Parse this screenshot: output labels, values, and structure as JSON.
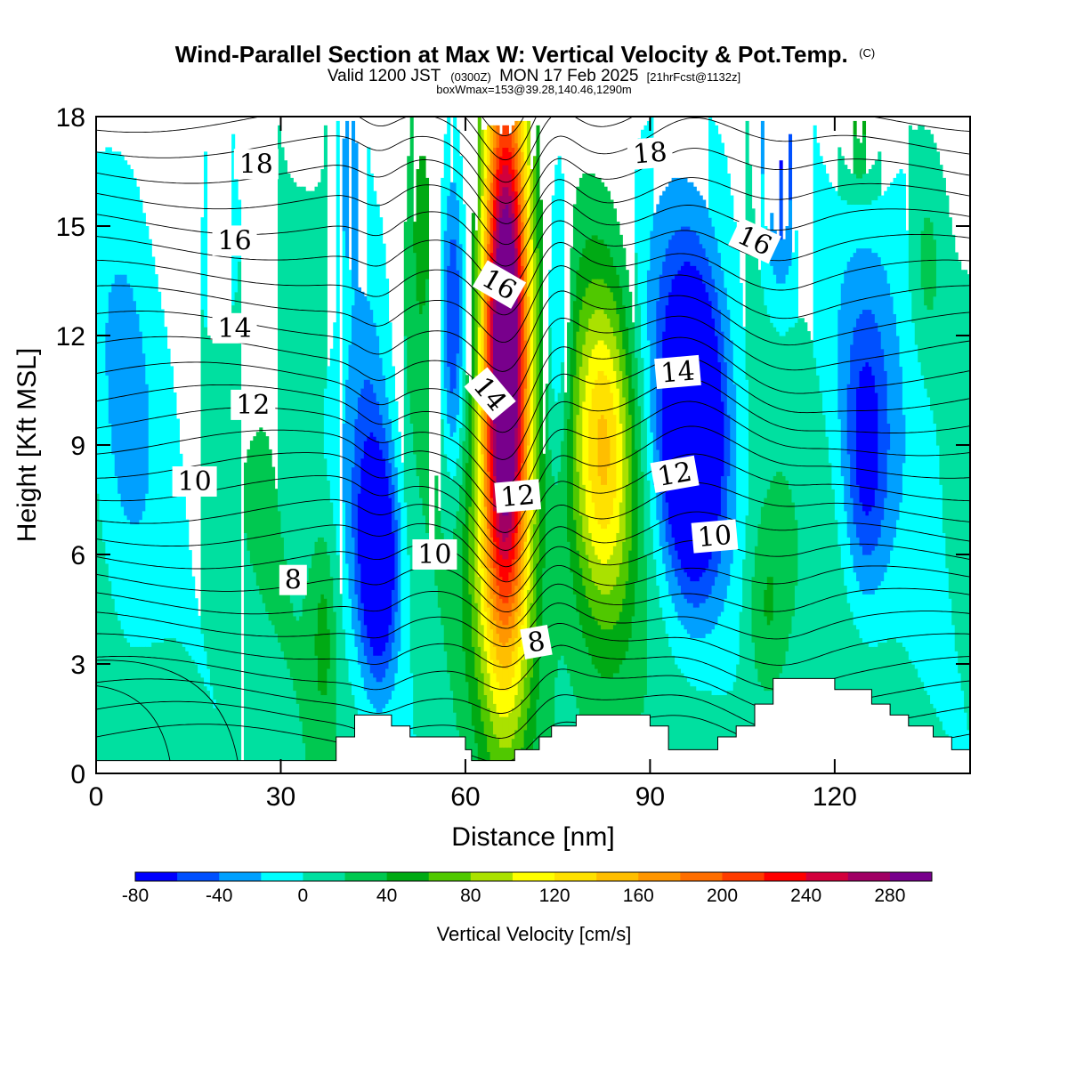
{
  "title": {
    "main": "Wind-Parallel Section at Max W: Vertical Velocity & Pot.Temp.",
    "copyright": "(C)",
    "valid_prefix": "Valid 1200 JST",
    "valid_utc": "(0300Z)",
    "valid_date": "MON 17 Feb 2025",
    "forecast": "[21hrFcst@1132z]",
    "box_info": "boxWmax=153@39.28,140.46,1290m"
  },
  "chart_data": {
    "type": "heatmap",
    "xlabel": "Distance [nm]",
    "ylabel": "Height [Kft MSL]",
    "xlim": [
      0,
      142
    ],
    "ylim": [
      0,
      18
    ],
    "x_ticks": [
      "0",
      "30",
      "60",
      "90",
      "120"
    ],
    "x_tick_values": [
      0,
      30,
      60,
      90,
      120
    ],
    "y_ticks": [
      "0",
      "3",
      "6",
      "9",
      "12",
      "15",
      "18"
    ],
    "y_tick_values": [
      0,
      3,
      6,
      9,
      12,
      15,
      18
    ],
    "colorbar": {
      "title": "Vertical Velocity [cm/s]",
      "levels": [
        -80,
        -60,
        -40,
        -20,
        0,
        20,
        40,
        60,
        80,
        100,
        120,
        140,
        160,
        180,
        200,
        220,
        240,
        260,
        280,
        300
      ],
      "tick_labels": [
        "-80",
        "-40",
        "0",
        "40",
        "80",
        "120",
        "160",
        "200",
        "240",
        "280"
      ],
      "tick_values": [
        -80,
        -40,
        0,
        40,
        80,
        120,
        160,
        200,
        240,
        280
      ],
      "colors": [
        "#0000ff",
        "#0050ff",
        "#00a0ff",
        "#00ffff",
        "#00e0a0",
        "#00c850",
        "#00aa14",
        "#50c800",
        "#aae100",
        "#ffff00",
        "#ffe100",
        "#ffbe00",
        "#ff9600",
        "#ff6e00",
        "#ff3c00",
        "#ff0000",
        "#d2003c",
        "#a00064",
        "#78008c"
      ]
    },
    "terrain": {
      "x": [
        0,
        39,
        39,
        42,
        42,
        48,
        48,
        51,
        51,
        60,
        60,
        61,
        61,
        64,
        64,
        68,
        68,
        72,
        72,
        74,
        74,
        78,
        78,
        90,
        90,
        93,
        93,
        101,
        101,
        104,
        104,
        107,
        107,
        110,
        110,
        120,
        120,
        126,
        126,
        129,
        129,
        132,
        132,
        136,
        136,
        139,
        139,
        142
      ],
      "y": [
        0.35,
        0.35,
        1.0,
        1.0,
        1.6,
        1.6,
        1.3,
        1.3,
        1.0,
        1.0,
        0.65,
        0.65,
        0.35,
        0.35,
        0.35,
        0.35,
        0.65,
        0.65,
        1.0,
        1.0,
        1.3,
        1.3,
        1.6,
        1.6,
        1.3,
        1.3,
        0.65,
        0.65,
        1.0,
        1.0,
        1.3,
        1.3,
        1.9,
        1.9,
        2.6,
        2.6,
        2.3,
        2.3,
        1.9,
        1.9,
        1.6,
        1.6,
        1.3,
        1.3,
        1.0,
        1.0,
        0.65,
        0.65
      ]
    },
    "contour_labels": [
      {
        "text": "18",
        "x": 26,
        "y": 16.7,
        "angle": 0
      },
      {
        "text": "16",
        "x": 22.5,
        "y": 14.6,
        "angle": 0
      },
      {
        "text": "14",
        "x": 22.5,
        "y": 12.2,
        "angle": 0
      },
      {
        "text": "12",
        "x": 25.5,
        "y": 10.1,
        "angle": 0
      },
      {
        "text": "10",
        "x": 16,
        "y": 8.0,
        "angle": 0
      },
      {
        "text": "8",
        "x": 32,
        "y": 5.3,
        "angle": 0
      },
      {
        "text": "10",
        "x": 55,
        "y": 6.0,
        "angle": 0
      },
      {
        "text": "16",
        "x": 65.5,
        "y": 13.4,
        "angle": 30
      },
      {
        "text": "14",
        "x": 64,
        "y": 10.4,
        "angle": 50
      },
      {
        "text": "12",
        "x": 68.5,
        "y": 7.6,
        "angle": -5
      },
      {
        "text": "8",
        "x": 71.5,
        "y": 3.6,
        "angle": -10
      },
      {
        "text": "18",
        "x": 90,
        "y": 17.0,
        "angle": -5
      },
      {
        "text": "16",
        "x": 107,
        "y": 14.6,
        "angle": 25
      },
      {
        "text": "14",
        "x": 94.5,
        "y": 11.0,
        "angle": -5
      },
      {
        "text": "12",
        "x": 94,
        "y": 8.2,
        "angle": -10
      },
      {
        "text": "10",
        "x": 100.5,
        "y": 6.5,
        "angle": -5
      }
    ]
  }
}
